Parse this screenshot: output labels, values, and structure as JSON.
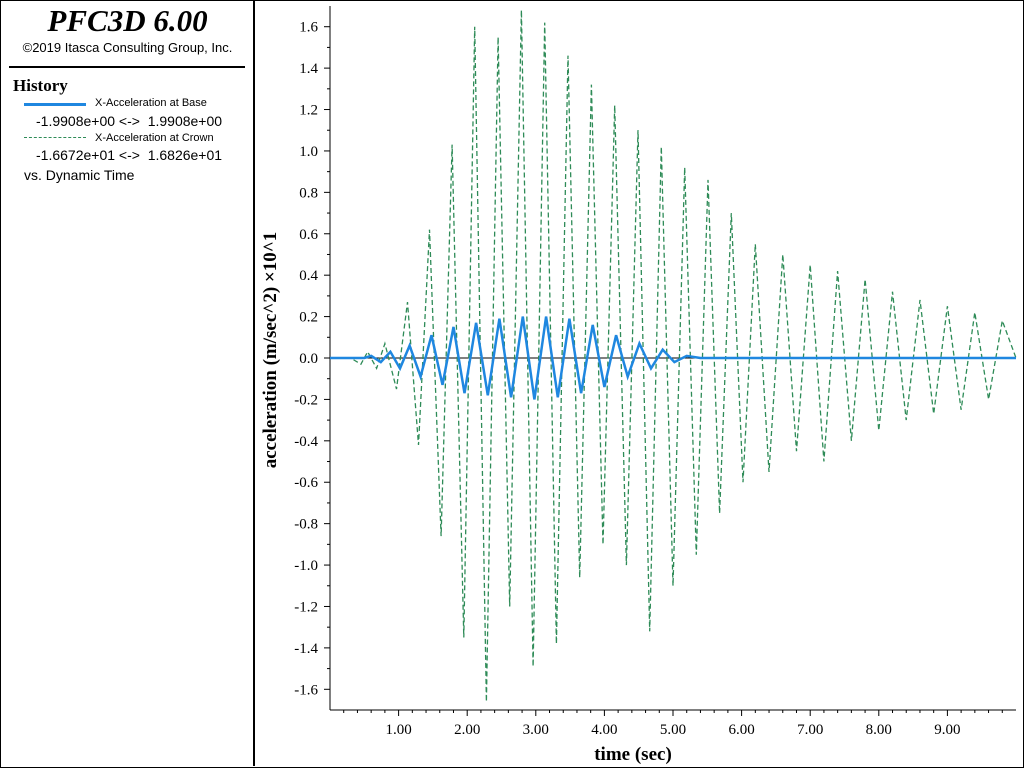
{
  "header": {
    "app_title": "PFC3D 6.00",
    "copyright": "©2019 Itasca Consulting Group, Inc."
  },
  "legend": {
    "heading": "History",
    "series": [
      {
        "name": "X-Acceleration at Base",
        "range": "-1.9908e+00 <->  1.9908e+00",
        "color": "#1f87e0",
        "style": "solid"
      },
      {
        "name": "X-Acceleration at Crown",
        "range": "-1.6672e+01 <->  1.6826e+01",
        "color": "#2e8b57",
        "style": "dashed"
      }
    ],
    "vs_label": "vs. Dynamic Time"
  },
  "chart_data": {
    "type": "line",
    "xlabel": "time (sec)",
    "ylabel": "acceleration (m/sec^2) ×10^1",
    "xlim": [
      0,
      10
    ],
    "ylim": [
      -1.7,
      1.7
    ],
    "x_ticks": [
      "1.00",
      "2.00",
      "3.00",
      "4.00",
      "5.00",
      "6.00",
      "7.00",
      "8.00",
      "9.00"
    ],
    "y_ticks": [
      "1.6",
      "1.4",
      "1.2",
      "1.0",
      "0.8",
      "0.6",
      "0.4",
      "0.2",
      "0.0",
      "-0.2",
      "-0.4",
      "-0.6",
      "-0.8",
      "-1.0",
      "-1.2",
      "-1.4",
      "-1.6"
    ],
    "grid": false,
    "zero_line": true,
    "series": [
      {
        "name": "X-Acceleration at Base",
        "x": [
          0,
          0.5,
          0.6,
          0.74,
          0.88,
          1.02,
          1.16,
          1.32,
          1.48,
          1.64,
          1.8,
          1.96,
          2.13,
          2.3,
          2.47,
          2.64,
          2.81,
          2.98,
          3.15,
          3.32,
          3.49,
          3.66,
          3.83,
          4.0,
          4.17,
          4.34,
          4.51,
          4.68,
          4.85,
          5.02,
          5.2,
          5.4,
          5.6,
          5.8,
          6.0,
          7.0,
          8.0,
          9.0,
          10.0
        ],
        "y": [
          0,
          0,
          0.01,
          -0.02,
          0.03,
          -0.05,
          0.06,
          -0.09,
          0.11,
          -0.13,
          0.15,
          -0.17,
          0.17,
          -0.18,
          0.19,
          -0.19,
          0.2,
          -0.2,
          0.2,
          -0.19,
          0.19,
          -0.17,
          0.16,
          -0.14,
          0.11,
          -0.09,
          0.07,
          -0.05,
          0.04,
          -0.02,
          0.01,
          0.0,
          0.0,
          0.0,
          0.0,
          0.0,
          0.0,
          0.0,
          0.0
        ]
      },
      {
        "name": "X-Acceleration at Crown",
        "x": [
          0,
          0.3,
          0.45,
          0.55,
          0.68,
          0.8,
          0.97,
          1.13,
          1.29,
          1.45,
          1.62,
          1.78,
          1.95,
          2.11,
          2.28,
          2.45,
          2.62,
          2.79,
          2.96,
          3.13,
          3.3,
          3.47,
          3.64,
          3.81,
          3.98,
          4.15,
          4.32,
          4.49,
          4.66,
          4.83,
          5.0,
          5.17,
          5.34,
          5.51,
          5.68,
          5.85,
          6.02,
          6.2,
          6.4,
          6.6,
          6.8,
          7.0,
          7.2,
          7.4,
          7.6,
          7.8,
          8.0,
          8.2,
          8.4,
          8.6,
          8.8,
          9.0,
          9.2,
          9.4,
          9.6,
          9.8,
          10.0
        ],
        "y": [
          0,
          0.0,
          -0.03,
          0.03,
          -0.05,
          0.07,
          -0.15,
          0.27,
          -0.42,
          0.62,
          -0.86,
          1.03,
          -1.35,
          1.6,
          -1.66,
          1.55,
          -1.2,
          1.68,
          -1.49,
          1.62,
          -1.38,
          1.46,
          -1.06,
          1.32,
          -0.9,
          1.22,
          -1.0,
          1.1,
          -1.32,
          1.02,
          -1.1,
          0.92,
          -0.95,
          0.86,
          -0.75,
          0.7,
          -0.6,
          0.55,
          -0.55,
          0.5,
          -0.45,
          0.45,
          -0.5,
          0.42,
          -0.4,
          0.38,
          -0.35,
          0.32,
          -0.3,
          0.28,
          -0.27,
          0.25,
          -0.25,
          0.22,
          -0.2,
          0.18,
          0.0
        ]
      }
    ]
  }
}
